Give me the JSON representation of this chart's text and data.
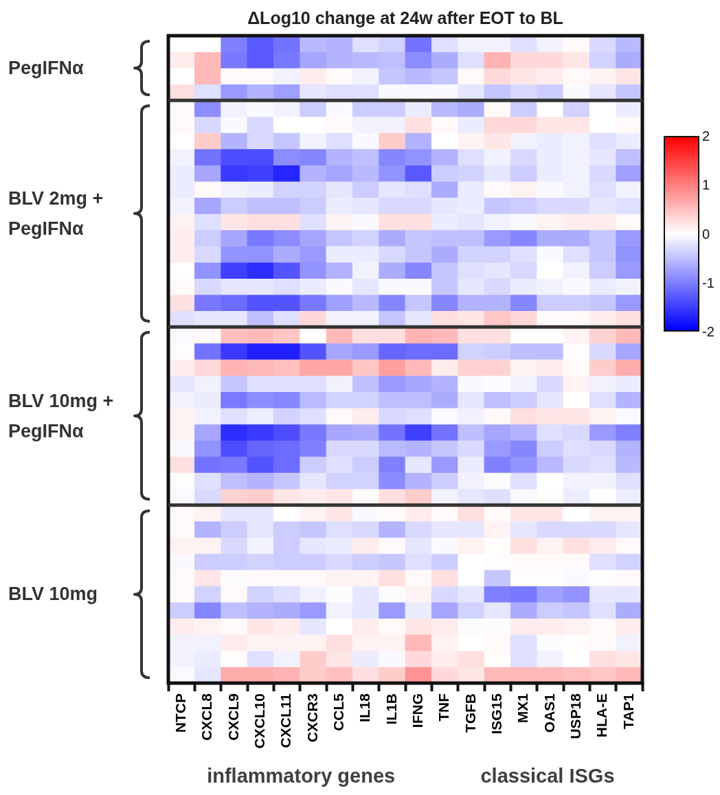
{
  "chart_data": {
    "type": "heatmap",
    "title": "ΔLog10 change at 24w after EOT to BL",
    "clim": [
      -2,
      2
    ],
    "cticks": [
      2,
      1,
      0,
      -1,
      -2
    ],
    "annotations": [
      "PegIFNα",
      "BLV 2mg + PegIFNα",
      "BLV 10mg + PegIFNα",
      "BLV 10mg",
      "inflammatory genes",
      "classical ISGs"
    ],
    "categories": [
      "NTCP",
      "CXCL8",
      "CXCL9",
      "CXCL10",
      "CXCL11",
      "CXCR3",
      "CCL5",
      "IL18",
      "IL1B",
      "IFNG",
      "TNF",
      "TGFB",
      "ISG15",
      "MX1",
      "OAS1",
      "USP18",
      "HLA-E",
      "TAP1"
    ],
    "y_categories": [
      null,
      null,
      null,
      null,
      null,
      null,
      null,
      null,
      null,
      null,
      null,
      null,
      null,
      null,
      null,
      null,
      null,
      null,
      null,
      null,
      null,
      null,
      null,
      null,
      null,
      null,
      null,
      null,
      null,
      null,
      null,
      null,
      null,
      null,
      null,
      null,
      null,
      null,
      null,
      null
    ],
    "cells": [
      [
        0,
        0,
        -1.0,
        -1.3,
        -1.1,
        -0.55,
        -0.6,
        -0.25,
        -0.35,
        -1.1,
        -0.25,
        -0.1,
        -0.1,
        -0.25,
        -0.1,
        0.05,
        -0.3,
        -0.55
      ],
      [
        0.15,
        0.55,
        -1.05,
        -1.3,
        -1.05,
        -0.7,
        -0.6,
        -0.55,
        -0.5,
        -0.9,
        -0.65,
        -0.25,
        0.6,
        0.3,
        0.3,
        0.2,
        -0.35,
        -0.65
      ],
      [
        0,
        0.55,
        0.05,
        0.05,
        -0.1,
        0.15,
        0.05,
        -0.1,
        -0.45,
        -0.55,
        -0.45,
        0.05,
        0.3,
        0.2,
        0.15,
        0.05,
        0.1,
        0.2
      ],
      [
        0.25,
        -0.25,
        -0.8,
        -0.6,
        -0.75,
        -0.2,
        -0.25,
        -0.25,
        -0.05,
        -0.05,
        -0.05,
        -0.2,
        -0.45,
        -0.3,
        -0.4,
        -0.05,
        -0.2,
        -0.45
      ],
      [
        0.05,
        -0.9,
        -0.1,
        -0.05,
        -0.1,
        -0.4,
        -0.05,
        -0.4,
        -0.4,
        -0.15,
        -0.55,
        -0.65,
        0.05,
        -0.4,
        0,
        -0.35,
        0,
        -0.15
      ],
      [
        0.05,
        -0.3,
        -0.05,
        -0.3,
        0,
        0,
        0.05,
        -0.1,
        -0.1,
        0.25,
        0.05,
        -0.15,
        0.3,
        0.3,
        0.2,
        0.2,
        0,
        0.05
      ],
      [
        0,
        0.4,
        -0.6,
        -0.3,
        -0.45,
        -0.1,
        -0.25,
        -0.05,
        0.4,
        -0.6,
        0,
        0.1,
        0.2,
        -0.1,
        -0.15,
        -0.1,
        -0.25,
        -0.15
      ],
      [
        -0.1,
        -1.1,
        -1.4,
        -1.4,
        -0.9,
        -0.95,
        -0.6,
        -0.5,
        -0.95,
        -0.85,
        -0.6,
        -0.25,
        -0.1,
        -0.3,
        -0.15,
        -0.1,
        -0.2,
        -0.5
      ],
      [
        -0.15,
        -0.7,
        -1.55,
        -1.5,
        -1.7,
        -0.6,
        -0.7,
        -0.55,
        -0.85,
        -1.3,
        -0.4,
        -0.35,
        -0.2,
        -0.4,
        -0.15,
        -0.1,
        -0.3,
        -0.75
      ],
      [
        -0.15,
        0.05,
        -0.1,
        -0.15,
        -0.35,
        -0.35,
        -0.2,
        -0.4,
        -0.2,
        -0.25,
        -0.65,
        -0.15,
        0.05,
        0.1,
        -0.05,
        -0.1,
        -0.25,
        -0.1
      ],
      [
        -0.1,
        -0.7,
        -0.4,
        -0.5,
        -0.5,
        -0.4,
        -0.15,
        -0.2,
        -0.3,
        -0.3,
        -0.2,
        -0.15,
        -0.45,
        -0.4,
        -0.3,
        -0.3,
        -0.2,
        -0.25
      ],
      [
        0.1,
        -0.25,
        0.2,
        0.25,
        0.25,
        -0.25,
        0.1,
        -0.05,
        0.25,
        0.25,
        -0.15,
        -0.2,
        -0.1,
        -0.05,
        0.1,
        0.15,
        0.15,
        0.05
      ],
      [
        0.15,
        -0.4,
        -0.7,
        -1.05,
        -0.9,
        -0.7,
        -0.45,
        -0.35,
        -0.65,
        -0.45,
        -0.5,
        -0.5,
        -0.8,
        -0.95,
        -0.65,
        -0.65,
        -0.45,
        -0.8
      ],
      [
        0.15,
        -0.3,
        -0.85,
        -0.85,
        -0.65,
        -0.8,
        -0.15,
        -0.15,
        -0.3,
        -0.45,
        -0.65,
        -0.35,
        -0.35,
        -0.25,
        -0.05,
        -0.25,
        -0.45,
        -0.85
      ],
      [
        0,
        -0.85,
        -1.5,
        -1.65,
        -1.35,
        -0.85,
        -0.6,
        -0.1,
        -0.65,
        -0.95,
        -0.45,
        -0.25,
        -0.2,
        -0.3,
        0,
        -0.1,
        -0.4,
        -0.8
      ],
      [
        0.05,
        -0.3,
        -0.2,
        -0.2,
        -0.25,
        -0.15,
        -0.05,
        -0.2,
        -0.05,
        -0.05,
        -0.45,
        -0.2,
        -0.3,
        -0.15,
        -0.1,
        -0.05,
        -0.15,
        -0.1
      ],
      [
        0.25,
        -1.05,
        -1.15,
        -1.35,
        -1.35,
        -1.05,
        -0.75,
        -0.55,
        -0.95,
        -0.45,
        -0.95,
        -0.6,
        -0.6,
        -0.95,
        -0.4,
        -0.4,
        -0.45,
        -0.8
      ],
      [
        -0.25,
        -0.2,
        -0.2,
        -0.5,
        -0.25,
        0.3,
        -0.1,
        -0.1,
        -0.45,
        -0.2,
        0.25,
        0.2,
        0.45,
        0.3,
        0.05,
        0.05,
        0.15,
        0.25
      ],
      [
        -0.05,
        0.05,
        0.5,
        0.55,
        0.45,
        0,
        0.55,
        0.25,
        0.25,
        0.6,
        0.55,
        0.25,
        0.25,
        0,
        0,
        0.1,
        0.35,
        0.55
      ],
      [
        0.02,
        -1.1,
        -1.55,
        -1.75,
        -1.75,
        -1.35,
        -0.7,
        -0.8,
        -1.2,
        -1.15,
        -1.15,
        -0.35,
        -0.4,
        -0.5,
        -0.5,
        0.02,
        -0.3,
        -0.7
      ],
      [
        0.15,
        0.3,
        0.6,
        0.55,
        0.5,
        0.7,
        0.7,
        0.45,
        0.75,
        0.55,
        0.15,
        0.35,
        0.35,
        0.1,
        0.15,
        0.05,
        0.4,
        0.65
      ],
      [
        -0.2,
        -0.1,
        -0.45,
        -0.25,
        -0.25,
        -0.25,
        -0.1,
        -0.5,
        -0.8,
        -0.7,
        -0.6,
        -0.05,
        -0.02,
        -0.1,
        -0.3,
        0.1,
        -0.1,
        -0.15
      ],
      [
        -0.1,
        -0.15,
        -1.05,
        -0.9,
        -0.95,
        -0.55,
        -0.35,
        -0.35,
        -0.5,
        -0.5,
        -0.65,
        -0.2,
        -0.5,
        -0.4,
        -0.2,
        0,
        -0.25,
        -0.6
      ],
      [
        0.1,
        -0.1,
        -0.25,
        -0.15,
        -0.35,
        -0.25,
        0.05,
        0.15,
        -0.3,
        -0.25,
        -0.05,
        -0.1,
        0.05,
        0.25,
        0.2,
        0.2,
        0.1,
        -0.05
      ],
      [
        0.1,
        -0.7,
        -1.65,
        -1.55,
        -1.4,
        -1.05,
        -0.7,
        -0.65,
        -1.1,
        -1.5,
        -1.1,
        -0.5,
        -0.7,
        -0.6,
        -0.25,
        -0.3,
        -0.8,
        -1.0
      ],
      [
        -0.05,
        -0.85,
        -1.4,
        -1.2,
        -1.15,
        -1.0,
        -0.3,
        -0.3,
        -0.55,
        -0.6,
        -0.45,
        -0.3,
        -0.8,
        -0.95,
        -0.4,
        -0.25,
        -0.3,
        -0.6
      ],
      [
        0.25,
        -1.1,
        -1.05,
        -1.35,
        -1.15,
        -0.4,
        -0.25,
        -0.4,
        -1.0,
        -0.2,
        -0.8,
        -0.15,
        -1.0,
        -0.85,
        -0.55,
        -0.3,
        -0.25,
        -0.55
      ],
      [
        0.02,
        -0.25,
        -0.5,
        -0.6,
        -0.45,
        -0.2,
        -0.35,
        -0.35,
        -0.9,
        -0.6,
        -0.4,
        -0.1,
        -0.02,
        -0.25,
        0,
        -0.1,
        -0.1,
        -0.25
      ],
      [
        -0.05,
        -0.3,
        0.35,
        0.4,
        0.2,
        0.15,
        0.2,
        0.02,
        0.25,
        0.4,
        -0.1,
        -0.2,
        -0.25,
        -0.05,
        0.02,
        -0.15,
        0,
        -0.15
      ],
      [
        0.05,
        0.1,
        -0.2,
        -0.2,
        0,
        0.1,
        0.2,
        -0.05,
        0.05,
        0.15,
        0.05,
        0.25,
        0.05,
        0.2,
        0.2,
        0,
        0.1,
        0.1
      ],
      [
        0.05,
        -0.6,
        -0.4,
        -0.2,
        -0.4,
        -0.45,
        -0.25,
        -0.3,
        -0.6,
        -0.3,
        -0.2,
        -0.2,
        0.1,
        -0.2,
        -0.3,
        -0.3,
        -0.3,
        -0.2
      ],
      [
        0.1,
        0.1,
        -0.3,
        -0.1,
        -0.4,
        -0.2,
        -0.15,
        0.15,
        0.05,
        -0.2,
        -0.05,
        0.1,
        0.02,
        0.25,
        0.1,
        0.25,
        0.15,
        0.05
      ],
      [
        -0.05,
        -0.4,
        -0.4,
        -0.35,
        -0.4,
        -0.4,
        -0.3,
        -0.4,
        -0.45,
        -0.25,
        -0.4,
        0,
        0.02,
        0.05,
        0.05,
        0.05,
        -0.25,
        -0.35
      ],
      [
        0.05,
        0.2,
        -0.02,
        0.05,
        0.05,
        0.05,
        0.1,
        0.1,
        0.25,
        0.05,
        0.25,
        0,
        -0.45,
        0.02,
        0.02,
        -0.05,
        0.02,
        0.05
      ],
      [
        0.05,
        -0.35,
        0.05,
        -0.35,
        -0.25,
        -0.1,
        -0.02,
        -0.2,
        -0.02,
        0.1,
        -0.3,
        -0.2,
        -1.0,
        -1.05,
        -0.75,
        -0.85,
        -0.2,
        -0.2
      ],
      [
        -0.4,
        -0.95,
        -0.5,
        -0.6,
        -0.65,
        -0.8,
        -0.1,
        -0.2,
        -0.8,
        -0.15,
        -0.7,
        -0.35,
        -0.2,
        -0.65,
        -0.4,
        -0.45,
        -0.25,
        -0.65
      ],
      [
        0.15,
        0.1,
        0.05,
        0.2,
        0.15,
        -0.2,
        0,
        0.15,
        0.05,
        0.2,
        0.15,
        -0.02,
        -0.02,
        0.15,
        0.15,
        0.1,
        0.05,
        0.15
      ],
      [
        -0.1,
        -0.1,
        0.15,
        0.1,
        0.1,
        0.1,
        0.25,
        0.1,
        0.1,
        0.55,
        0.1,
        0,
        0.05,
        -0.25,
        -0.02,
        0.02,
        0.05,
        -0.1
      ],
      [
        -0.1,
        -0.15,
        0.02,
        -0.25,
        -0.1,
        0.4,
        0.2,
        -0.15,
        -0.05,
        0.3,
        0.15,
        0.25,
        0.02,
        -0.25,
        -0.1,
        0,
        0.25,
        0.2
      ],
      [
        -0.05,
        -0.2,
        0.65,
        0.65,
        0.6,
        0.4,
        0.5,
        0.25,
        0.4,
        0.85,
        0.3,
        0.2,
        0.55,
        0.55,
        0.55,
        0.5,
        0.45,
        0.55
      ]
    ]
  }
}
